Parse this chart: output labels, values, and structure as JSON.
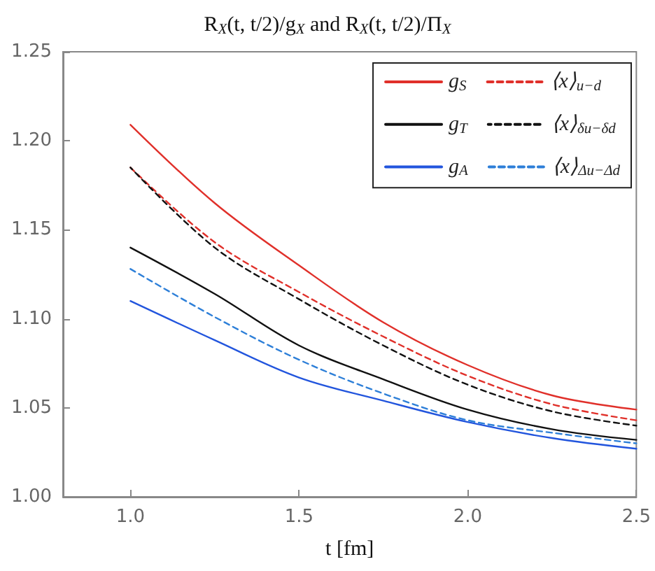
{
  "chart_data": {
    "type": "line",
    "title": "R$_{X}$(t, t/2)/g$_{X}$ and R$_{X}$(t, t/2)/Π$_{X}$",
    "xlabel": "t [fm]",
    "x": [
      1.0,
      1.25,
      1.5,
      1.75,
      2.0,
      2.25,
      2.5
    ],
    "series": [
      {
        "name": "g$_{S}$",
        "color": "#e0302a",
        "line_style": "solid",
        "values": [
          1.209,
          1.165,
          1.13,
          1.098,
          1.074,
          1.057,
          1.049
        ]
      },
      {
        "name": "g$_{T}$",
        "color": "#111111",
        "line_style": "solid",
        "values": [
          1.14,
          1.114,
          1.085,
          1.066,
          1.049,
          1.038,
          1.032
        ]
      },
      {
        "name": "g$_{A}$",
        "color": "#2255dd",
        "line_style": "solid",
        "values": [
          1.11,
          1.088,
          1.067,
          1.054,
          1.042,
          1.033,
          1.027
        ]
      },
      {
        "name": "⟨x⟩$_{u−d}$",
        "color": "#e0302a",
        "line_style": "dashed",
        "values": [
          1.185,
          1.143,
          1.115,
          1.09,
          1.068,
          1.052,
          1.043
        ]
      },
      {
        "name": "⟨x⟩$_{δu−δd}$",
        "color": "#111111",
        "line_style": "dashed",
        "values": [
          1.185,
          1.14,
          1.111,
          1.085,
          1.063,
          1.048,
          1.04
        ]
      },
      {
        "name": "⟨x⟩$_{Δu−Δd}$",
        "color": "#2d7fd8",
        "line_style": "dashed",
        "values": [
          1.128,
          1.101,
          1.077,
          1.058,
          1.043,
          1.036,
          1.03
        ]
      }
    ],
    "xlim": [
      0.8,
      2.5
    ],
    "xticks": [
      {
        "value": 1,
        "label": "1.0"
      },
      1.5,
      {
        "value": 2,
        "label": "2.0"
      },
      2.5
    ],
    "ylim": [
      1.0,
      1.25
    ],
    "yticks": [
      {
        "value": 1,
        "label": "1.00"
      },
      1.05,
      {
        "value": 1.1,
        "label": "1.10"
      },
      1.15,
      {
        "value": 1.2,
        "label": "1.20"
      },
      1.25
    ],
    "grid": false,
    "legend": "top right",
    "marker": "none"
  }
}
